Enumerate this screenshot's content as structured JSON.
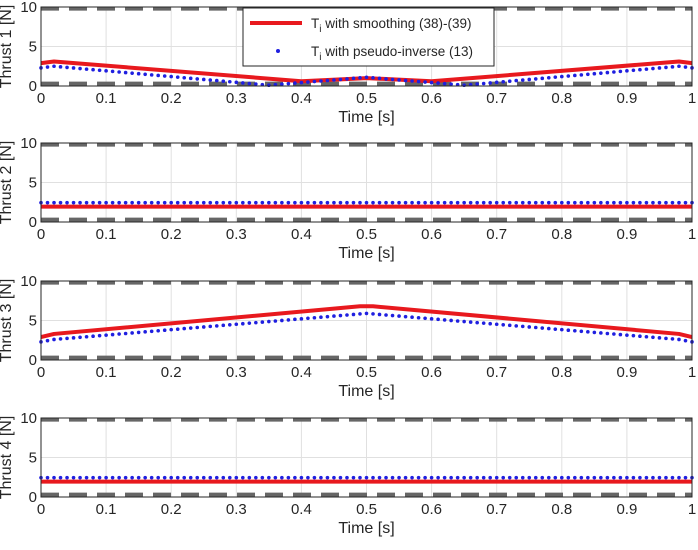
{
  "chart_data": [
    {
      "type": "line",
      "ylabel": "Thrust 1 [N]",
      "xlabel": "Time [s]",
      "xlim": [
        0,
        1
      ],
      "ylim": [
        0,
        10
      ],
      "xticks": [
        "0",
        "0.1",
        "0.2",
        "0.3",
        "0.4",
        "0.5",
        "0.6",
        "0.7",
        "0.8",
        "0.9",
        "1"
      ],
      "yticks": [
        "0",
        "5",
        "10"
      ],
      "grid": true,
      "bounds": [
        0.3,
        9.8
      ],
      "series": [
        {
          "name": "smoothing",
          "x": [
            0,
            0.02,
            0.4,
            0.5,
            0.6,
            0.98,
            1
          ],
          "y": [
            2.9,
            3.1,
            0.6,
            1.0,
            0.6,
            3.1,
            2.9
          ]
        },
        {
          "name": "pseudo-inverse",
          "x": [
            0,
            0.02,
            0.35,
            0.5,
            0.65,
            0.98,
            1
          ],
          "y": [
            2.3,
            2.5,
            0.1,
            1.1,
            0.1,
            2.5,
            2.3
          ]
        }
      ]
    },
    {
      "type": "line",
      "ylabel": "Thrust 2 [N]",
      "xlabel": "Time [s]",
      "xlim": [
        0,
        1
      ],
      "ylim": [
        0,
        10
      ],
      "xticks": [
        "0",
        "0.1",
        "0.2",
        "0.3",
        "0.4",
        "0.5",
        "0.6",
        "0.7",
        "0.8",
        "0.9",
        "1"
      ],
      "yticks": [
        "0",
        "5",
        "10"
      ],
      "grid": true,
      "bounds": [
        0.3,
        9.8
      ],
      "series": [
        {
          "name": "smoothing",
          "x": [
            0,
            1
          ],
          "y": [
            1.95,
            1.95
          ]
        },
        {
          "name": "pseudo-inverse",
          "x": [
            0,
            1
          ],
          "y": [
            2.45,
            2.45
          ]
        }
      ]
    },
    {
      "type": "line",
      "ylabel": "Thrust 3 [N]",
      "xlabel": "Time [s]",
      "xlim": [
        0,
        1
      ],
      "ylim": [
        0,
        10
      ],
      "xticks": [
        "0",
        "0.1",
        "0.2",
        "0.3",
        "0.4",
        "0.5",
        "0.6",
        "0.7",
        "0.8",
        "0.9",
        "1"
      ],
      "yticks": [
        "0",
        "5",
        "10"
      ],
      "grid": true,
      "bounds": [
        0.3,
        9.8
      ],
      "series": [
        {
          "name": "smoothing",
          "x": [
            0,
            0.02,
            0.49,
            0.51,
            0.98,
            1
          ],
          "y": [
            2.9,
            3.3,
            6.8,
            6.8,
            3.3,
            2.9
          ]
        },
        {
          "name": "pseudo-inverse",
          "x": [
            0,
            0.02,
            0.5,
            0.98,
            1
          ],
          "y": [
            2.3,
            2.6,
            5.9,
            2.6,
            2.3
          ]
        }
      ]
    },
    {
      "type": "line",
      "ylabel": "Thrust 4 [N]",
      "xlabel": "Time [s]",
      "xlim": [
        0,
        1
      ],
      "ylim": [
        0,
        10
      ],
      "xticks": [
        "0",
        "0.1",
        "0.2",
        "0.3",
        "0.4",
        "0.5",
        "0.6",
        "0.7",
        "0.8",
        "0.9",
        "1"
      ],
      "yticks": [
        "0",
        "5",
        "10"
      ],
      "grid": true,
      "bounds": [
        0.3,
        9.8
      ],
      "series": [
        {
          "name": "smoothing",
          "x": [
            0,
            1
          ],
          "y": [
            1.95,
            1.95
          ]
        },
        {
          "name": "pseudo-inverse",
          "x": [
            0,
            1
          ],
          "y": [
            2.45,
            2.45
          ]
        }
      ]
    }
  ],
  "legend": {
    "location": "top-center of first panel",
    "entries": [
      {
        "base": "T",
        "sub": "i",
        "rest": " with smoothing (38)-(39)",
        "style": "line",
        "color": "#e8191e"
      },
      {
        "base": "T",
        "sub": "i",
        "rest": " with pseudo-inverse (13)",
        "style": "dots",
        "color": "#1f1fe0"
      }
    ]
  },
  "colors": {
    "smoothing": "#e8191e",
    "pseudo_inverse": "#1f1fe0",
    "bound": "#666666",
    "grid": "#e0e0e0",
    "axis": "#262626"
  }
}
